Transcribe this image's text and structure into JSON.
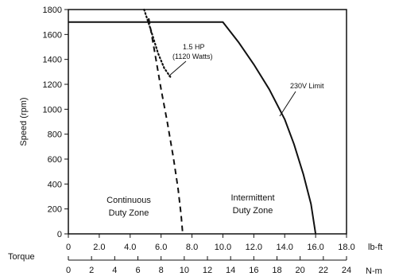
{
  "chart_data": {
    "type": "line",
    "ylabel": "Speed (rpm)",
    "torque_label": "Torque",
    "ylim": [
      0,
      1800
    ],
    "y_ticks": [
      "0",
      "200",
      "400",
      "600",
      "800",
      "1000",
      "1200",
      "1400",
      "1600",
      "1800"
    ],
    "x_lbft": {
      "unit": "lb-ft",
      "range": [
        0,
        18
      ],
      "ticks": [
        "0",
        "2.0",
        "4.0",
        "6.0",
        "8.0",
        "10.0",
        "12.0",
        "14.0",
        "16.0",
        "18.0"
      ]
    },
    "x_nm": {
      "unit": "N-m",
      "range": [
        0,
        24
      ],
      "ticks": [
        "0",
        "2",
        "4",
        "6",
        "8",
        "10",
        "12",
        "14",
        "16",
        "18",
        "20",
        "22",
        "24"
      ]
    },
    "grid": false,
    "series": [
      {
        "key": "intermittent_limit",
        "style": "solid",
        "x_unit": "lb-ft",
        "points": [
          [
            0,
            1700
          ],
          [
            10.0,
            1700
          ],
          [
            11.0,
            1540
          ],
          [
            12.0,
            1360
          ],
          [
            13.0,
            1160
          ],
          [
            14.0,
            920
          ],
          [
            14.6,
            720
          ],
          [
            15.2,
            480
          ],
          [
            15.7,
            240
          ],
          [
            16.0,
            0
          ]
        ]
      },
      {
        "key": "continuous_limit",
        "style": "dashed",
        "x_unit": "lb-ft",
        "points": [
          [
            5.2,
            1730
          ],
          [
            5.6,
            1450
          ],
          [
            6.0,
            1160
          ],
          [
            6.4,
            900
          ],
          [
            6.8,
            610
          ],
          [
            7.1,
            360
          ],
          [
            7.3,
            150
          ],
          [
            7.4,
            0
          ]
        ]
      },
      {
        "key": "power_curve_1_5hp",
        "style": "dotted",
        "x_unit": "lb-ft",
        "points": [
          [
            4.9,
            1800
          ],
          [
            5.3,
            1650
          ],
          [
            5.8,
            1450
          ],
          [
            6.2,
            1330
          ],
          [
            6.6,
            1260
          ]
        ]
      }
    ],
    "annotations": [
      {
        "key": "hp",
        "text": "1.5 HP"
      },
      {
        "key": "watts",
        "text": "(1120 Watts)"
      },
      {
        "key": "limit",
        "text": "230V Limit"
      }
    ],
    "zones": [
      {
        "key": "continuous",
        "line1": "Continuous",
        "line2": "Duty Zone"
      },
      {
        "key": "intermittent",
        "line1": "Intermittent",
        "line2": "Duty Zone"
      }
    ]
  }
}
